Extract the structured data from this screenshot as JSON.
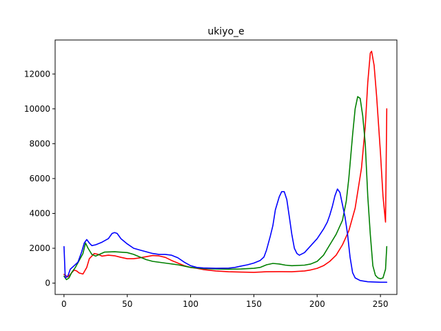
{
  "chart_data": {
    "type": "line",
    "title": "ukiyo_e",
    "xlabel": "",
    "ylabel": "",
    "xlim": [
      -7,
      263
    ],
    "ylim": [
      -650,
      13950
    ],
    "xticks": [
      0,
      50,
      100,
      150,
      200,
      250
    ],
    "yticks": [
      0,
      2000,
      4000,
      6000,
      8000,
      10000,
      12000
    ],
    "grid": false,
    "series": [
      {
        "color": "#ff0000",
        "points": [
          [
            0,
            500
          ],
          [
            3,
            350
          ],
          [
            5,
            500
          ],
          [
            8,
            750
          ],
          [
            10,
            700
          ],
          [
            12,
            580
          ],
          [
            15,
            520
          ],
          [
            18,
            900
          ],
          [
            20,
            1400
          ],
          [
            24,
            1700
          ],
          [
            27,
            1650
          ],
          [
            30,
            1550
          ],
          [
            35,
            1600
          ],
          [
            40,
            1570
          ],
          [
            45,
            1480
          ],
          [
            50,
            1400
          ],
          [
            55,
            1400
          ],
          [
            60,
            1450
          ],
          [
            65,
            1520
          ],
          [
            70,
            1580
          ],
          [
            75,
            1560
          ],
          [
            80,
            1480
          ],
          [
            85,
            1300
          ],
          [
            90,
            1150
          ],
          [
            95,
            1000
          ],
          [
            100,
            900
          ],
          [
            105,
            850
          ],
          [
            110,
            780
          ],
          [
            120,
            700
          ],
          [
            130,
            650
          ],
          [
            140,
            630
          ],
          [
            150,
            620
          ],
          [
            160,
            650
          ],
          [
            170,
            660
          ],
          [
            180,
            650
          ],
          [
            190,
            700
          ],
          [
            195,
            760
          ],
          [
            200,
            850
          ],
          [
            205,
            1000
          ],
          [
            210,
            1250
          ],
          [
            215,
            1600
          ],
          [
            220,
            2200
          ],
          [
            225,
            3000
          ],
          [
            230,
            4300
          ],
          [
            235,
            6600
          ],
          [
            238,
            9000
          ],
          [
            240,
            11500
          ],
          [
            242,
            13200
          ],
          [
            243,
            13300
          ],
          [
            245,
            12500
          ],
          [
            247,
            10700
          ],
          [
            250,
            7500
          ],
          [
            252,
            5000
          ],
          [
            254,
            3500
          ],
          [
            255,
            10000
          ]
        ]
      },
      {
        "color": "#008000",
        "points": [
          [
            0,
            400
          ],
          [
            2,
            200
          ],
          [
            4,
            300
          ],
          [
            6,
            600
          ],
          [
            9,
            900
          ],
          [
            12,
            1300
          ],
          [
            15,
            1700
          ],
          [
            17,
            2300
          ],
          [
            19,
            2000
          ],
          [
            22,
            1650
          ],
          [
            25,
            1550
          ],
          [
            28,
            1650
          ],
          [
            32,
            1780
          ],
          [
            40,
            1800
          ],
          [
            50,
            1750
          ],
          [
            55,
            1650
          ],
          [
            60,
            1500
          ],
          [
            65,
            1350
          ],
          [
            70,
            1250
          ],
          [
            80,
            1150
          ],
          [
            90,
            1050
          ],
          [
            100,
            900
          ],
          [
            110,
            830
          ],
          [
            120,
            810
          ],
          [
            130,
            800
          ],
          [
            140,
            810
          ],
          [
            150,
            850
          ],
          [
            155,
            900
          ],
          [
            160,
            1050
          ],
          [
            165,
            1130
          ],
          [
            170,
            1100
          ],
          [
            175,
            1030
          ],
          [
            180,
            1000
          ],
          [
            190,
            1030
          ],
          [
            195,
            1100
          ],
          [
            200,
            1250
          ],
          [
            205,
            1600
          ],
          [
            210,
            2200
          ],
          [
            215,
            2800
          ],
          [
            220,
            3600
          ],
          [
            223,
            4700
          ],
          [
            225,
            6000
          ],
          [
            228,
            8500
          ],
          [
            230,
            10000
          ],
          [
            232,
            10700
          ],
          [
            234,
            10600
          ],
          [
            236,
            9600
          ],
          [
            238,
            8000
          ],
          [
            240,
            5000
          ],
          [
            242,
            2800
          ],
          [
            244,
            1000
          ],
          [
            246,
            450
          ],
          [
            248,
            300
          ],
          [
            250,
            250
          ],
          [
            252,
            300
          ],
          [
            254,
            800
          ],
          [
            255,
            2100
          ]
        ]
      },
      {
        "color": "#0000ff",
        "points": [
          [
            0,
            2100
          ],
          [
            1,
            300
          ],
          [
            3,
            400
          ],
          [
            5,
            800
          ],
          [
            8,
            1000
          ],
          [
            11,
            1200
          ],
          [
            14,
            1800
          ],
          [
            16,
            2300
          ],
          [
            18,
            2500
          ],
          [
            20,
            2300
          ],
          [
            22,
            2150
          ],
          [
            25,
            2200
          ],
          [
            30,
            2350
          ],
          [
            35,
            2550
          ],
          [
            38,
            2850
          ],
          [
            40,
            2900
          ],
          [
            42,
            2850
          ],
          [
            45,
            2550
          ],
          [
            50,
            2250
          ],
          [
            55,
            2000
          ],
          [
            60,
            1900
          ],
          [
            65,
            1800
          ],
          [
            70,
            1700
          ],
          [
            75,
            1650
          ],
          [
            80,
            1650
          ],
          [
            85,
            1600
          ],
          [
            90,
            1450
          ],
          [
            95,
            1200
          ],
          [
            100,
            1000
          ],
          [
            105,
            900
          ],
          [
            110,
            870
          ],
          [
            120,
            850
          ],
          [
            130,
            860
          ],
          [
            135,
            900
          ],
          [
            140,
            980
          ],
          [
            145,
            1050
          ],
          [
            150,
            1150
          ],
          [
            155,
            1300
          ],
          [
            158,
            1500
          ],
          [
            160,
            1900
          ],
          [
            163,
            2700
          ],
          [
            165,
            3300
          ],
          [
            167,
            4200
          ],
          [
            170,
            4950
          ],
          [
            172,
            5250
          ],
          [
            174,
            5250
          ],
          [
            176,
            4800
          ],
          [
            178,
            3800
          ],
          [
            180,
            2800
          ],
          [
            182,
            2000
          ],
          [
            184,
            1700
          ],
          [
            186,
            1600
          ],
          [
            190,
            1750
          ],
          [
            195,
            2150
          ],
          [
            200,
            2550
          ],
          [
            205,
            3100
          ],
          [
            208,
            3500
          ],
          [
            210,
            3900
          ],
          [
            212,
            4400
          ],
          [
            214,
            5000
          ],
          [
            216,
            5400
          ],
          [
            218,
            5200
          ],
          [
            220,
            4500
          ],
          [
            222,
            3800
          ],
          [
            224,
            2800
          ],
          [
            226,
            1500
          ],
          [
            228,
            600
          ],
          [
            230,
            300
          ],
          [
            234,
            150
          ],
          [
            240,
            80
          ],
          [
            250,
            50
          ],
          [
            255,
            50
          ]
        ]
      }
    ]
  }
}
